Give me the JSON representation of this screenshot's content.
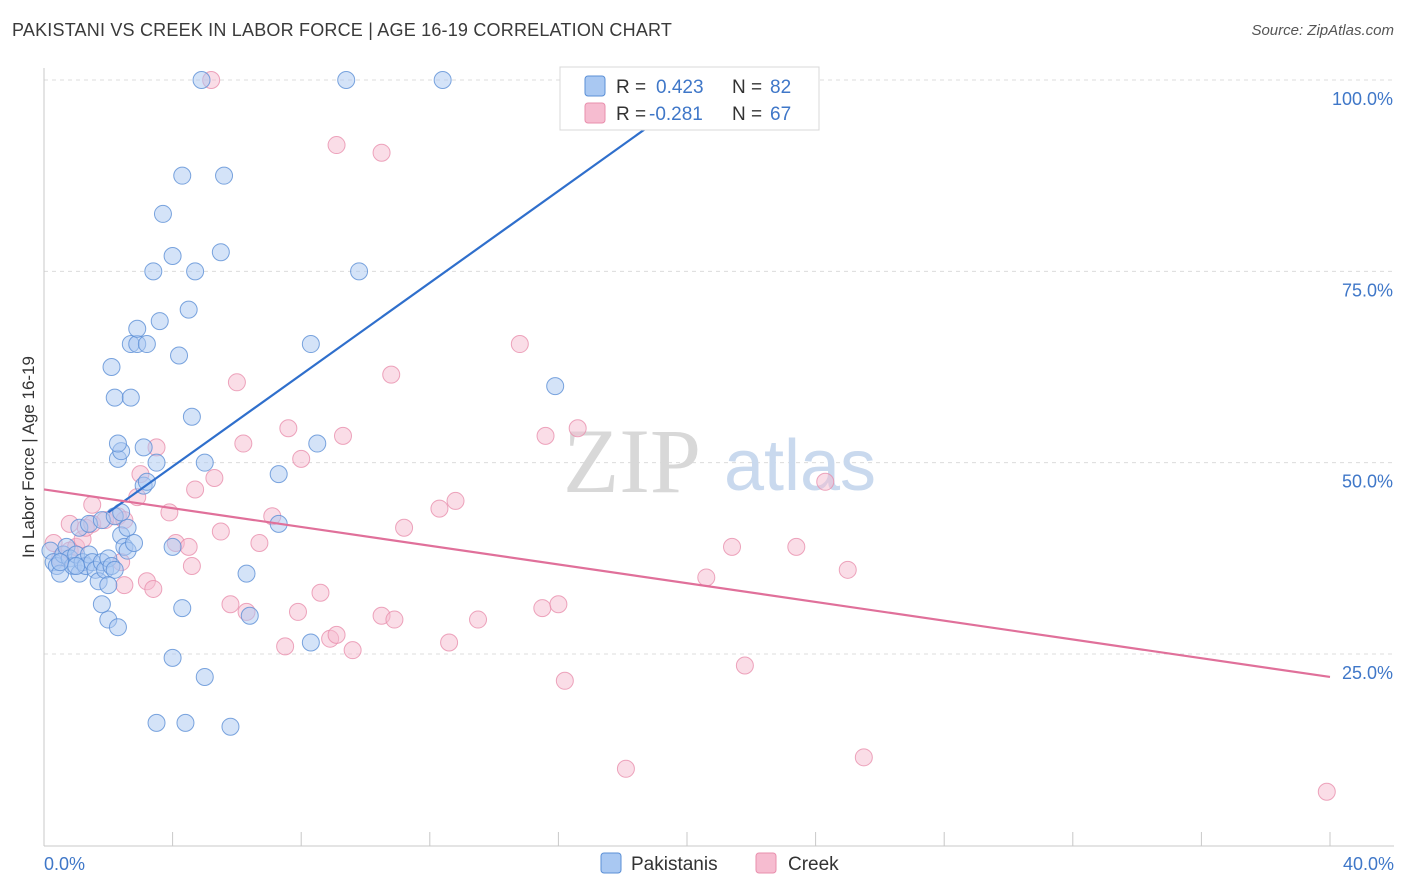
{
  "title": "PAKISTANI VS CREEK IN LABOR FORCE | AGE 16-19 CORRELATION CHART",
  "source": "Source: ZipAtlas.com",
  "watermark": {
    "zip": "ZIP",
    "atlas": "atlas"
  },
  "colors": {
    "pakistanis_fill": "#a9c8f2",
    "pakistanis_stroke": "#5b8fd6",
    "pakistanis_line": "#2f6fcc",
    "creek_fill": "#f6bcd0",
    "creek_stroke": "#e88fad",
    "creek_line": "#e0709a",
    "grid": "#dcdcdc",
    "label_blue": "#3f77c8"
  },
  "legend_box": {
    "rows": [
      {
        "r_label": "R =",
        "r_value": "0.423",
        "n_label": "N =",
        "n_value": "82"
      },
      {
        "r_label": "R =",
        "r_value": "-0.281",
        "n_label": "N =",
        "n_value": "67"
      }
    ]
  },
  "bottom_legend": [
    "Pakistanis",
    "Creek"
  ],
  "chart_data": {
    "type": "scatter",
    "title": "PAKISTANI VS CREEK IN LABOR FORCE | AGE 16-19 CORRELATION CHART",
    "xlabel": "",
    "ylabel": "In Labor Force | Age 16-19",
    "xlim": [
      0,
      40
    ],
    "ylim": [
      2,
      102
    ],
    "x_tick_labels": [
      "0.0%",
      "40.0%"
    ],
    "y_ticks": [
      25,
      50,
      75,
      100
    ],
    "y_tick_labels": [
      "25.0%",
      "50.0%",
      "75.0%",
      "100.0%"
    ],
    "series": [
      {
        "name": "Pakistanis",
        "r": 0.423,
        "n": 82,
        "trend": {
          "x": [
            2.0,
            20.5
          ],
          "y": [
            43.5,
            99.0
          ]
        },
        "points": [
          [
            0.2,
            38.5
          ],
          [
            0.3,
            37.0
          ],
          [
            0.4,
            36.5
          ],
          [
            0.5,
            35.5
          ],
          [
            0.6,
            38.0
          ],
          [
            0.7,
            39.0
          ],
          [
            0.8,
            37.5
          ],
          [
            0.9,
            36.5
          ],
          [
            1.0,
            38.0
          ],
          [
            1.1,
            35.5
          ],
          [
            1.2,
            37.0
          ],
          [
            1.3,
            36.5
          ],
          [
            1.4,
            38.0
          ],
          [
            1.5,
            37.0
          ],
          [
            1.6,
            36.0
          ],
          [
            1.7,
            34.5
          ],
          [
            1.8,
            37.0
          ],
          [
            1.9,
            36.0
          ],
          [
            2.0,
            37.5
          ],
          [
            2.1,
            36.5
          ],
          [
            2.2,
            36.0
          ],
          [
            1.1,
            41.5
          ],
          [
            1.4,
            42.0
          ],
          [
            1.8,
            42.5
          ],
          [
            2.2,
            43.0
          ],
          [
            2.4,
            40.5
          ],
          [
            2.6,
            41.5
          ],
          [
            2.5,
            39.0
          ],
          [
            2.6,
            38.5
          ],
          [
            2.8,
            39.5
          ],
          [
            2.4,
            43.5
          ],
          [
            2.0,
            29.5
          ],
          [
            2.3,
            28.5
          ],
          [
            1.8,
            31.5
          ],
          [
            2.0,
            34.0
          ],
          [
            3.1,
            47.0
          ],
          [
            3.2,
            47.5
          ],
          [
            3.5,
            50.0
          ],
          [
            3.1,
            52.0
          ],
          [
            2.3,
            50.5
          ],
          [
            2.4,
            51.5
          ],
          [
            2.3,
            52.5
          ],
          [
            2.2,
            58.5
          ],
          [
            2.7,
            58.5
          ],
          [
            2.1,
            62.5
          ],
          [
            2.7,
            65.5
          ],
          [
            2.9,
            65.5
          ],
          [
            3.2,
            65.5
          ],
          [
            2.9,
            67.5
          ],
          [
            3.6,
            68.5
          ],
          [
            4.2,
            64.0
          ],
          [
            4.5,
            70.0
          ],
          [
            3.4,
            75.0
          ],
          [
            4.0,
            77.0
          ],
          [
            4.7,
            75.0
          ],
          [
            5.5,
            77.5
          ],
          [
            3.7,
            82.5
          ],
          [
            4.3,
            87.5
          ],
          [
            5.6,
            87.5
          ],
          [
            4.9,
            100.0
          ],
          [
            9.4,
            100.0
          ],
          [
            12.4,
            100.0
          ],
          [
            4.6,
            56.0
          ],
          [
            5.0,
            50.0
          ],
          [
            4.0,
            39.0
          ],
          [
            4.3,
            31.0
          ],
          [
            7.3,
            48.5
          ],
          [
            7.3,
            42.0
          ],
          [
            5.0,
            22.0
          ],
          [
            6.3,
            35.5
          ],
          [
            6.4,
            30.0
          ],
          [
            8.5,
            52.5
          ],
          [
            4.0,
            24.5
          ],
          [
            3.5,
            16.0
          ],
          [
            4.4,
            16.0
          ],
          [
            5.8,
            15.5
          ],
          [
            8.3,
            26.5
          ],
          [
            8.3,
            65.5
          ],
          [
            9.8,
            75.0
          ],
          [
            15.9,
            60.0
          ],
          [
            0.5,
            37.0
          ],
          [
            1.0,
            36.5
          ]
        ]
      },
      {
        "name": "Creek",
        "r": -0.281,
        "n": 67,
        "trend": {
          "x": [
            0.0,
            40.0
          ],
          "y": [
            46.5,
            22.0
          ]
        },
        "points": [
          [
            0.3,
            39.5
          ],
          [
            0.5,
            37.5
          ],
          [
            0.8,
            38.5
          ],
          [
            1.0,
            39.0
          ],
          [
            1.2,
            40.0
          ],
          [
            0.8,
            42.0
          ],
          [
            1.3,
            41.5
          ],
          [
            1.5,
            42.0
          ],
          [
            1.9,
            42.5
          ],
          [
            1.5,
            44.5
          ],
          [
            2.3,
            43.0
          ],
          [
            2.5,
            42.5
          ],
          [
            2.9,
            45.5
          ],
          [
            3.0,
            48.5
          ],
          [
            3.5,
            52.0
          ],
          [
            2.4,
            37.0
          ],
          [
            2.5,
            34.0
          ],
          [
            3.2,
            34.5
          ],
          [
            3.4,
            33.5
          ],
          [
            3.9,
            43.5
          ],
          [
            4.1,
            39.5
          ],
          [
            4.5,
            39.0
          ],
          [
            4.6,
            36.5
          ],
          [
            4.7,
            46.5
          ],
          [
            5.3,
            48.0
          ],
          [
            5.5,
            41.0
          ],
          [
            5.8,
            31.5
          ],
          [
            6.3,
            30.5
          ],
          [
            6.0,
            60.5
          ],
          [
            6.2,
            52.5
          ],
          [
            6.7,
            39.5
          ],
          [
            7.1,
            43.0
          ],
          [
            7.6,
            54.5
          ],
          [
            8.0,
            50.5
          ],
          [
            7.5,
            26.0
          ],
          [
            7.9,
            30.5
          ],
          [
            8.6,
            33.0
          ],
          [
            8.9,
            27.0
          ],
          [
            9.1,
            27.5
          ],
          [
            9.6,
            25.5
          ],
          [
            10.5,
            30.0
          ],
          [
            10.9,
            29.5
          ],
          [
            11.2,
            41.5
          ],
          [
            12.3,
            44.0
          ],
          [
            12.6,
            26.5
          ],
          [
            12.8,
            45.0
          ],
          [
            13.5,
            29.5
          ],
          [
            9.1,
            91.5
          ],
          [
            10.5,
            90.5
          ],
          [
            5.2,
            100.0
          ],
          [
            10.8,
            61.5
          ],
          [
            9.3,
            53.5
          ],
          [
            14.8,
            65.5
          ],
          [
            15.6,
            53.5
          ],
          [
            16.6,
            54.5
          ],
          [
            15.5,
            31.0
          ],
          [
            16.0,
            31.5
          ],
          [
            16.2,
            21.5
          ],
          [
            18.1,
            10.0
          ],
          [
            20.6,
            35.0
          ],
          [
            21.4,
            39.0
          ],
          [
            21.8,
            23.5
          ],
          [
            23.4,
            39.0
          ],
          [
            24.3,
            47.5
          ],
          [
            25.0,
            36.0
          ],
          [
            25.5,
            11.5
          ],
          [
            39.9,
            7.0
          ]
        ]
      }
    ]
  }
}
